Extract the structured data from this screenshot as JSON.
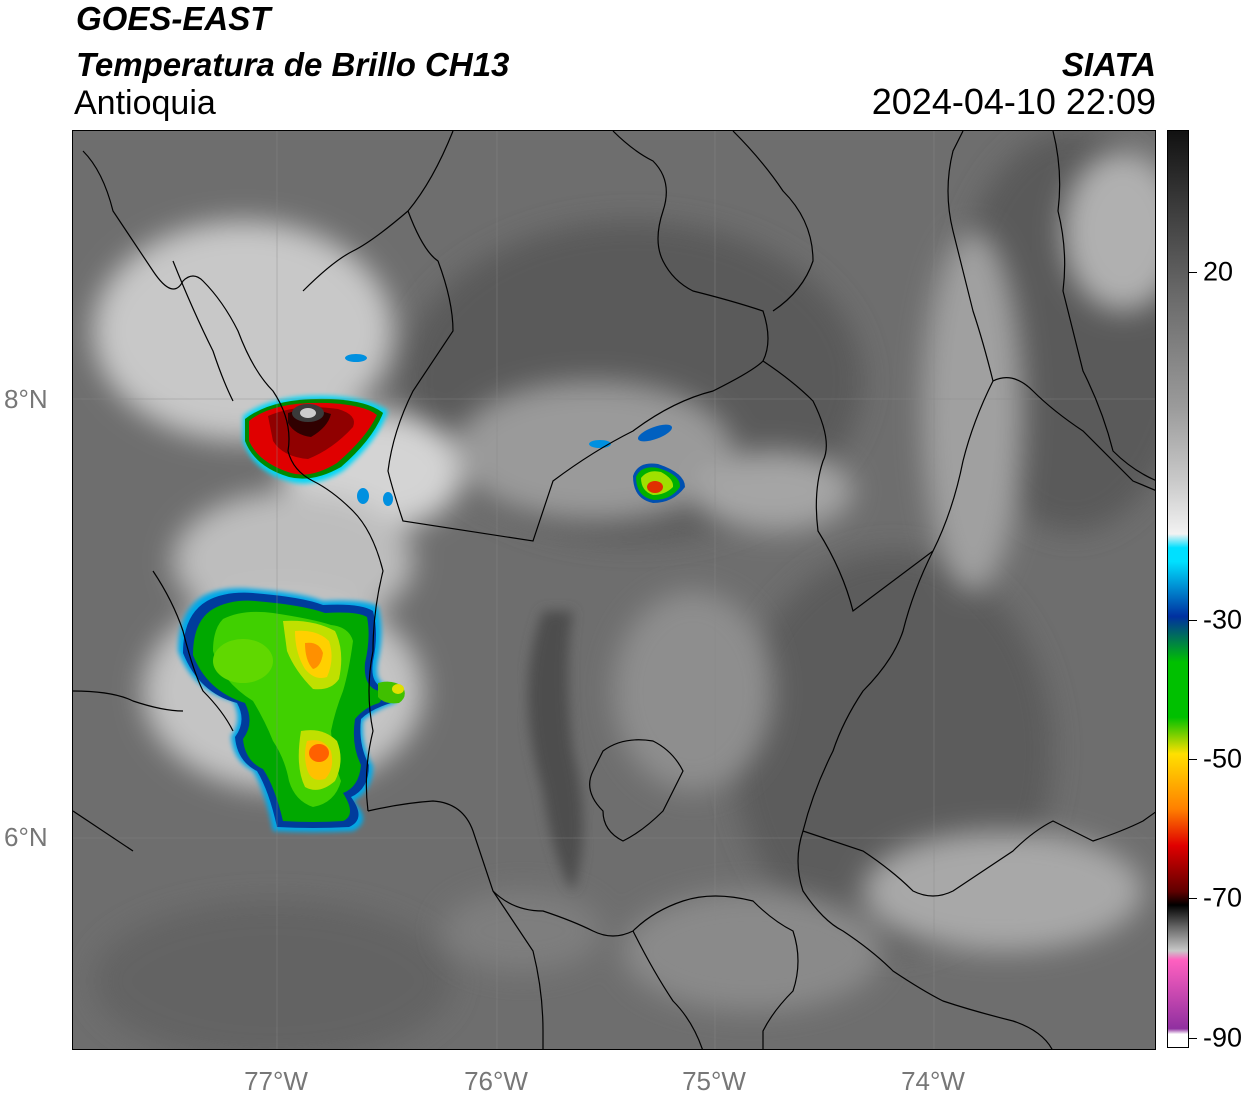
{
  "header": {
    "satellite": "GOES-EAST",
    "product": "Temperatura de Brillo CH13",
    "region": "Antioquia",
    "organization": "SIATA",
    "timestamp": "2024-04-10 22:09"
  },
  "axes": {
    "lat_labels": [
      "8°N",
      "6°N"
    ],
    "lon_labels": [
      "77°W",
      "76°W",
      "75°W",
      "74°W"
    ]
  },
  "colorbar": {
    "tick_labels": [
      "20",
      "-30",
      "-50",
      "-70",
      "-90"
    ],
    "colors": {
      "gray_ramp": [
        "#111111",
        "#3a3a3a",
        "#6a6a6a",
        "#9a9a9a",
        "#c8c8c8",
        "#f2f2f2"
      ],
      "cyan": "#00e0ff",
      "blue": "#0030a0",
      "green": "#00c000",
      "yellow": "#ffe000",
      "orange": "#ff8000",
      "red": "#e00000",
      "dark_red": "#600000",
      "black": "#000000",
      "pink": "#ff60c0",
      "purple": "#9030a0"
    }
  },
  "colors": {
    "background_gray": "#6e6e6e",
    "cloud_gray": "#cfcfcf",
    "border_line": "#000000",
    "grid_line": "#8a8a8a"
  }
}
